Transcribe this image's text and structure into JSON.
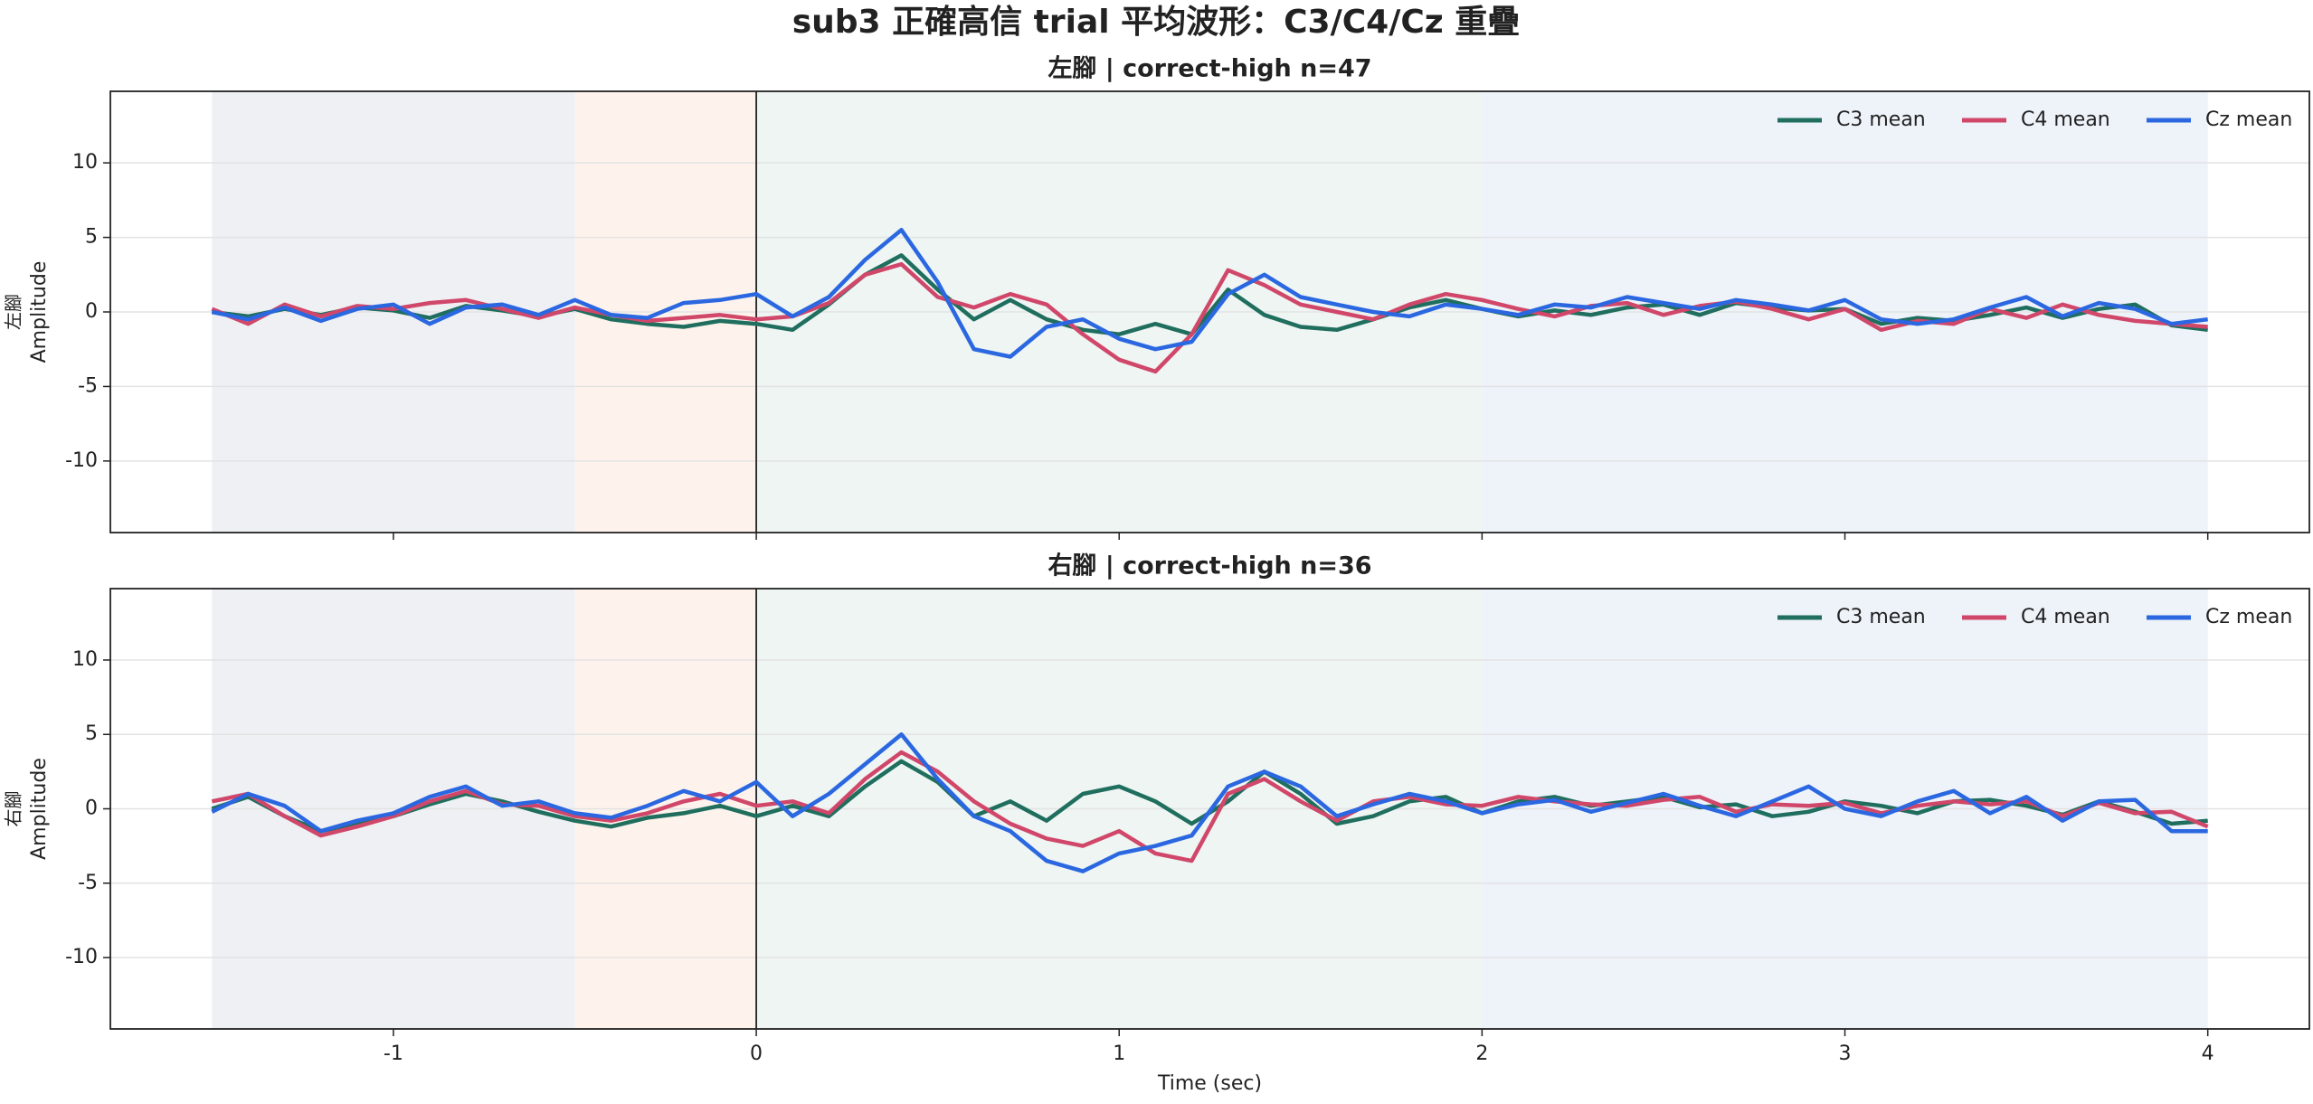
{
  "suptitle": "sub3 正確高信 trial 平均波形：C3/C4/Cz 重疊",
  "chart_data": [
    {
      "type": "line",
      "title": "左腳 | correct-high n=47",
      "ylabel_group": "左腳",
      "ylabel": "Amplitude",
      "xlim": [
        -1.78,
        4.28
      ],
      "ylim": [
        -14.8,
        14.8
      ],
      "xticks": [
        -1,
        0,
        1,
        2,
        3,
        4
      ],
      "yticks": [
        -10,
        -5,
        0,
        5,
        10
      ],
      "show_xticklabels": false,
      "grid": true,
      "legend": "upper right",
      "vline": 0,
      "spans": [
        {
          "x0": -1.5,
          "x1": -0.5,
          "color": "#eef0f4"
        },
        {
          "x0": -0.5,
          "x1": 0,
          "color": "#fdf3ec"
        },
        {
          "x0": 0,
          "x1": 2,
          "color": "#eef5f3"
        },
        {
          "x0": 2,
          "x1": 4,
          "color": "#eef2f9"
        }
      ],
      "x": [
        -1.5,
        -1.4,
        -1.3,
        -1.2,
        -1.1,
        -1.0,
        -0.9,
        -0.8,
        -0.7,
        -0.6,
        -0.5,
        -0.4,
        -0.3,
        -0.2,
        -0.1,
        0,
        0.1,
        0.2,
        0.3,
        0.4,
        0.5,
        0.6,
        0.7,
        0.8,
        0.9,
        1.0,
        1.1,
        1.2,
        1.3,
        1.4,
        1.5,
        1.6,
        1.7,
        1.8,
        1.9,
        2.0,
        2.1,
        2.2,
        2.3,
        2.4,
        2.5,
        2.6,
        2.7,
        2.8,
        2.9,
        3.0,
        3.1,
        3.2,
        3.3,
        3.4,
        3.5,
        3.6,
        3.7,
        3.8,
        3.9,
        4.0
      ],
      "series": [
        {
          "name": "C3 mean",
          "color": "#1f6e5e",
          "values": [
            0,
            -0.3,
            0.2,
            -0.2,
            0.3,
            0.1,
            -0.4,
            0.4,
            0.1,
            -0.3,
            0.2,
            -0.5,
            -0.8,
            -1,
            -0.6,
            -0.8,
            -1.2,
            0.5,
            2.5,
            3.8,
            1.5,
            -0.5,
            0.8,
            -0.5,
            -1.2,
            -1.5,
            -0.8,
            -1.5,
            1.5,
            -0.2,
            -1,
            -1.2,
            -0.5,
            0.3,
            0.8,
            0.2,
            -0.3,
            0.1,
            -0.2,
            0.3,
            0.5,
            -0.2,
            0.6,
            0.3,
            0.1,
            0.2,
            -0.8,
            -0.4,
            -0.6,
            -0.2,
            0.3,
            -0.4,
            0.2,
            0.5,
            -0.9,
            -1.2
          ]
        },
        {
          "name": "C4 mean",
          "color": "#d0476a",
          "values": [
            0.2,
            -0.8,
            0.5,
            -0.3,
            0.4,
            0.2,
            0.6,
            0.8,
            0.2,
            -0.4,
            0.3,
            -0.2,
            -0.6,
            -0.4,
            -0.2,
            -0.5,
            -0.3,
            0.6,
            2.5,
            3.2,
            1.0,
            0.3,
            1.2,
            0.5,
            -1.5,
            -3.2,
            -4.0,
            -1.5,
            2.8,
            1.8,
            0.5,
            0.0,
            -0.5,
            0.5,
            1.2,
            0.8,
            0.2,
            -0.3,
            0.4,
            0.6,
            -0.2,
            0.4,
            0.7,
            0.2,
            -0.5,
            0.2,
            -1.2,
            -0.6,
            -0.8,
            0.2,
            -0.4,
            0.5,
            -0.2,
            -0.6,
            -0.8,
            -1.0
          ]
        },
        {
          "name": "Cz mean",
          "color": "#2a67e0",
          "values": [
            0,
            -0.5,
            0.3,
            -0.6,
            0.2,
            0.5,
            -0.8,
            0.3,
            0.5,
            -0.2,
            0.8,
            -0.2,
            -0.4,
            0.6,
            0.8,
            1.2,
            -0.3,
            1.0,
            3.5,
            5.5,
            2.0,
            -2.5,
            -3.0,
            -1.0,
            -0.5,
            -1.8,
            -2.5,
            -2.0,
            1.2,
            2.5,
            1.0,
            0.5,
            0.0,
            -0.3,
            0.5,
            0.2,
            -0.2,
            0.5,
            0.3,
            1.0,
            0.6,
            0.2,
            0.8,
            0.5,
            0.1,
            0.8,
            -0.5,
            -0.8,
            -0.5,
            0.3,
            1.0,
            -0.3,
            0.6,
            0.2,
            -0.8,
            -0.5
          ]
        }
      ]
    },
    {
      "type": "line",
      "title": "右腳 | correct-high n=36",
      "ylabel_group": "右腳",
      "ylabel": "Amplitude",
      "xlabel": "Time (sec)",
      "xlim": [
        -1.78,
        4.28
      ],
      "ylim": [
        -14.8,
        14.8
      ],
      "xticks": [
        -1,
        0,
        1,
        2,
        3,
        4
      ],
      "yticks": [
        -10,
        -5,
        0,
        5,
        10
      ],
      "show_xticklabels": true,
      "grid": true,
      "legend": "upper right",
      "vline": 0,
      "spans": [
        {
          "x0": -1.5,
          "x1": -0.5,
          "color": "#eef0f4"
        },
        {
          "x0": -0.5,
          "x1": 0,
          "color": "#fdf3ec"
        },
        {
          "x0": 0,
          "x1": 2,
          "color": "#eef5f3"
        },
        {
          "x0": 2,
          "x1": 4,
          "color": "#eef2f9"
        }
      ],
      "x": [
        -1.5,
        -1.4,
        -1.3,
        -1.2,
        -1.1,
        -1.0,
        -0.9,
        -0.8,
        -0.7,
        -0.6,
        -0.5,
        -0.4,
        -0.3,
        -0.2,
        -0.1,
        0,
        0.1,
        0.2,
        0.3,
        0.4,
        0.5,
        0.6,
        0.7,
        0.8,
        0.9,
        1.0,
        1.1,
        1.2,
        1.3,
        1.4,
        1.5,
        1.6,
        1.7,
        1.8,
        1.9,
        2.0,
        2.1,
        2.2,
        2.3,
        2.4,
        2.5,
        2.6,
        2.7,
        2.8,
        2.9,
        3.0,
        3.1,
        3.2,
        3.3,
        3.4,
        3.5,
        3.6,
        3.7,
        3.8,
        3.9,
        4.0
      ],
      "series": [
        {
          "name": "C3 mean",
          "color": "#1f6e5e",
          "values": [
            0,
            0.8,
            -0.5,
            -1.5,
            -1.0,
            -0.5,
            0.3,
            1.0,
            0.5,
            -0.2,
            -0.8,
            -1.2,
            -0.6,
            -0.3,
            0.2,
            -0.5,
            0.2,
            -0.5,
            1.5,
            3.2,
            1.8,
            -0.5,
            0.5,
            -0.8,
            1.0,
            1.5,
            0.5,
            -1.0,
            0.5,
            2.5,
            1.0,
            -1.0,
            -0.5,
            0.5,
            0.8,
            -0.3,
            0.5,
            0.8,
            0.2,
            0.5,
            0.8,
            0.1,
            0.3,
            -0.5,
            -0.2,
            0.5,
            0.2,
            -0.3,
            0.5,
            0.6,
            0.2,
            -0.4,
            0.5,
            -0.2,
            -1.0,
            -0.8
          ]
        },
        {
          "name": "C4 mean",
          "color": "#d0476a",
          "values": [
            0.5,
            1.0,
            -0.5,
            -1.8,
            -1.2,
            -0.5,
            0.5,
            1.2,
            0.3,
            0.2,
            -0.5,
            -0.8,
            -0.3,
            0.5,
            1.0,
            0.2,
            0.5,
            -0.3,
            2.0,
            3.8,
            2.5,
            0.5,
            -1.0,
            -2.0,
            -2.5,
            -1.5,
            -3.0,
            -3.5,
            1.0,
            2.0,
            0.5,
            -0.8,
            0.5,
            0.8,
            0.3,
            0.2,
            0.8,
            0.5,
            0.3,
            0.2,
            0.6,
            0.8,
            -0.2,
            0.3,
            0.2,
            0.4,
            -0.3,
            0.2,
            0.5,
            0.3,
            0.5,
            -0.5,
            0.4,
            -0.3,
            -0.2,
            -1.2
          ]
        },
        {
          "name": "Cz mean",
          "color": "#2a67e0",
          "values": [
            -0.2,
            1.0,
            0.2,
            -1.5,
            -0.8,
            -0.3,
            0.8,
            1.5,
            0.2,
            0.5,
            -0.3,
            -0.6,
            0.2,
            1.2,
            0.5,
            1.8,
            -0.5,
            1.0,
            3.0,
            5.0,
            2.0,
            -0.5,
            -1.5,
            -3.5,
            -4.2,
            -3.0,
            -2.5,
            -1.8,
            1.5,
            2.5,
            1.5,
            -0.5,
            0.3,
            1.0,
            0.5,
            -0.3,
            0.3,
            0.6,
            -0.2,
            0.4,
            1.0,
            0.2,
            -0.5,
            0.5,
            1.5,
            0.0,
            -0.5,
            0.5,
            1.2,
            -0.3,
            0.8,
            -0.8,
            0.5,
            0.6,
            -1.5,
            -1.5
          ]
        }
      ]
    }
  ]
}
